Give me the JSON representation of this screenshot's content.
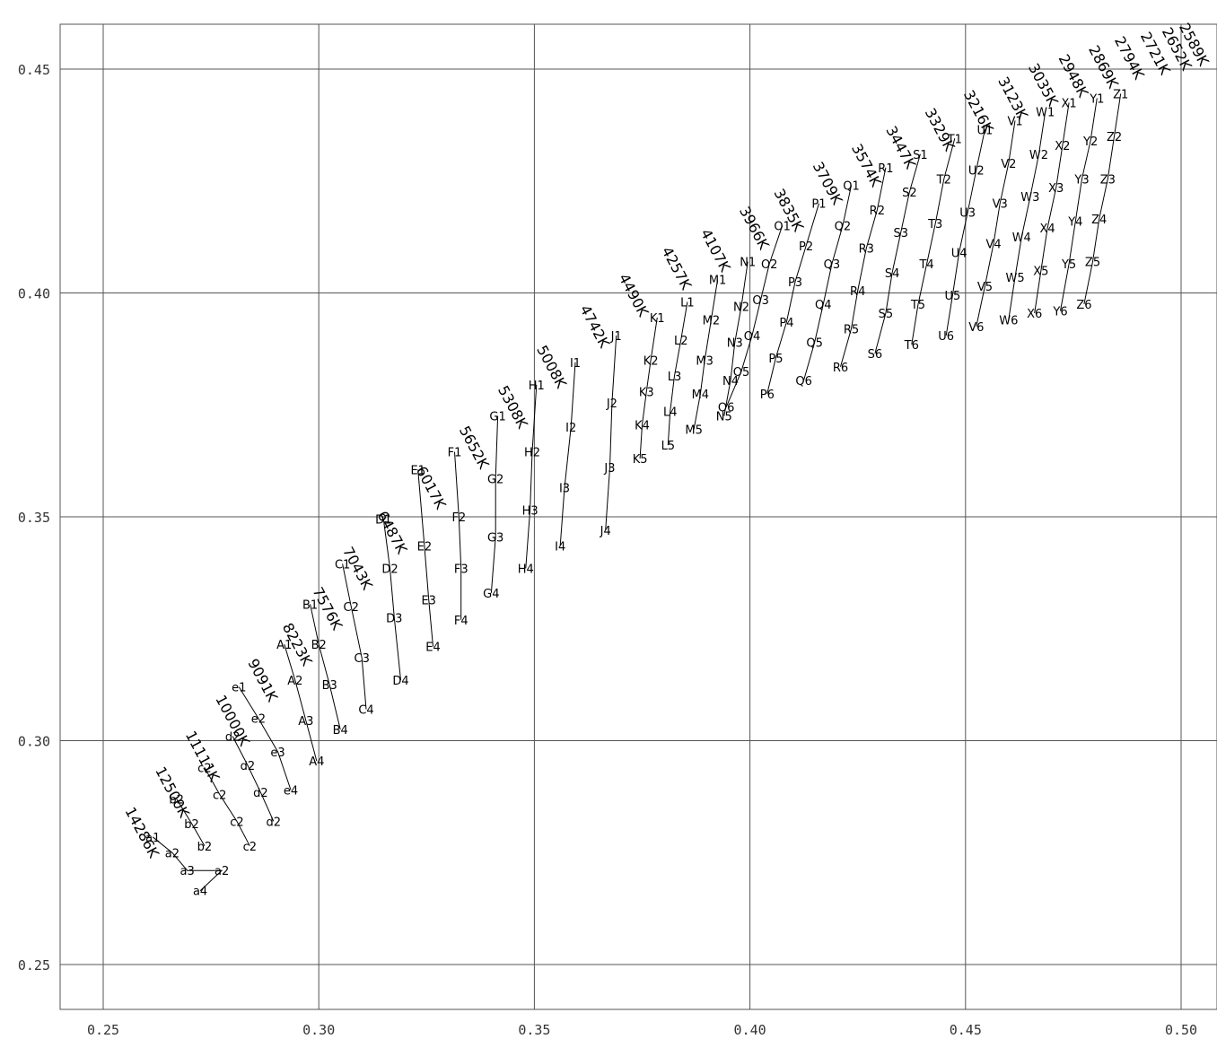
{
  "chart_data": {
    "type": "scatter",
    "title": "",
    "xlabel": "",
    "ylabel": "",
    "xlim": [
      0.24,
      0.505
    ],
    "ylim": [
      0.24,
      0.46
    ],
    "grid": true,
    "x_ticks": [
      0.25,
      0.3,
      0.35,
      0.4,
      0.45,
      0.5
    ],
    "y_ticks": [
      0.25,
      0.3,
      0.35,
      0.4,
      0.45
    ],
    "x_tick_labels": [
      "0.25",
      "0.30",
      "0.35",
      "0.40",
      "0.45",
      "0.50"
    ],
    "y_tick_labels": [
      "0.25",
      "0.30",
      "0.35",
      "0.40",
      "0.45"
    ],
    "cct_isotherms": [
      {
        "label": "14286K",
        "x": 0.258,
        "y": 0.279
      },
      {
        "label": "12500K",
        "x": 0.265,
        "y": 0.288
      },
      {
        "label": "11111K",
        "x": 0.272,
        "y": 0.296
      },
      {
        "label": "10000K",
        "x": 0.279,
        "y": 0.304
      },
      {
        "label": "9091K",
        "x": 0.286,
        "y": 0.313
      },
      {
        "label": "8223K",
        "x": 0.294,
        "y": 0.321
      },
      {
        "label": "7576K",
        "x": 0.301,
        "y": 0.329
      },
      {
        "label": "7043K",
        "x": 0.308,
        "y": 0.338
      },
      {
        "label": "6487K",
        "x": 0.316,
        "y": 0.346
      },
      {
        "label": "6017K",
        "x": 0.325,
        "y": 0.356
      },
      {
        "label": "5652K",
        "x": 0.335,
        "y": 0.365
      },
      {
        "label": "5308K",
        "x": 0.344,
        "y": 0.374
      },
      {
        "label": "5008K",
        "x": 0.353,
        "y": 0.383
      },
      {
        "label": "4742K",
        "x": 0.363,
        "y": 0.392
      },
      {
        "label": "4490K",
        "x": 0.372,
        "y": 0.399
      },
      {
        "label": "4257K",
        "x": 0.382,
        "y": 0.405
      },
      {
        "label": "4107K",
        "x": 0.391,
        "y": 0.409
      },
      {
        "label": "3966K",
        "x": 0.4,
        "y": 0.414
      },
      {
        "label": "3835K",
        "x": 0.408,
        "y": 0.418
      },
      {
        "label": "3709K",
        "x": 0.417,
        "y": 0.424
      },
      {
        "label": "3574K",
        "x": 0.426,
        "y": 0.428
      },
      {
        "label": "3447K",
        "x": 0.434,
        "y": 0.432
      },
      {
        "label": "3329K",
        "x": 0.443,
        "y": 0.436
      },
      {
        "label": "3216K",
        "x": 0.452,
        "y": 0.44
      },
      {
        "label": "3123K",
        "x": 0.46,
        "y": 0.443
      },
      {
        "label": "3035K",
        "x": 0.467,
        "y": 0.446
      },
      {
        "label": "2948K",
        "x": 0.474,
        "y": 0.448
      },
      {
        "label": "2869K",
        "x": 0.481,
        "y": 0.45
      },
      {
        "label": "2794K",
        "x": 0.487,
        "y": 0.452
      },
      {
        "label": "2721K",
        "x": 0.493,
        "y": 0.453
      },
      {
        "label": "2652K",
        "x": 0.498,
        "y": 0.454
      },
      {
        "label": "2589K",
        "x": 0.502,
        "y": 0.455
      }
    ],
    "bin_labels": [
      {
        "label": "a1",
        "x": 0.2615,
        "y": 0.2785
      },
      {
        "label": "a2",
        "x": 0.266,
        "y": 0.275
      },
      {
        "label": "a3",
        "x": 0.2695,
        "y": 0.271
      },
      {
        "label": "a4",
        "x": 0.2725,
        "y": 0.2665
      },
      {
        "label": "b2",
        "x": 0.267,
        "y": 0.287
      },
      {
        "label": "b2",
        "x": 0.2705,
        "y": 0.2815
      },
      {
        "label": "b2",
        "x": 0.2735,
        "y": 0.2765
      },
      {
        "label": "a2",
        "x": 0.2775,
        "y": 0.271
      },
      {
        "label": "c2",
        "x": 0.2735,
        "y": 0.294
      },
      {
        "label": "c2",
        "x": 0.277,
        "y": 0.288
      },
      {
        "label": "c2",
        "x": 0.281,
        "y": 0.282
      },
      {
        "label": "c2",
        "x": 0.284,
        "y": 0.2765
      },
      {
        "label": "d2",
        "x": 0.28,
        "y": 0.301
      },
      {
        "label": "d2",
        "x": 0.2835,
        "y": 0.2945
      },
      {
        "label": "d2",
        "x": 0.2865,
        "y": 0.2885
      },
      {
        "label": "d2",
        "x": 0.2895,
        "y": 0.282
      },
      {
        "label": "e1",
        "x": 0.2815,
        "y": 0.312
      },
      {
        "label": "e2",
        "x": 0.286,
        "y": 0.305
      },
      {
        "label": "e3",
        "x": 0.2905,
        "y": 0.2975
      },
      {
        "label": "e4",
        "x": 0.2935,
        "y": 0.289
      },
      {
        "label": "A1",
        "x": 0.292,
        "y": 0.3215
      },
      {
        "label": "A2",
        "x": 0.2945,
        "y": 0.3135
      },
      {
        "label": "A3",
        "x": 0.297,
        "y": 0.3045
      },
      {
        "label": "A4",
        "x": 0.2995,
        "y": 0.2955
      },
      {
        "label": "B1",
        "x": 0.298,
        "y": 0.3305
      },
      {
        "label": "B2",
        "x": 0.3,
        "y": 0.3215
      },
      {
        "label": "B3",
        "x": 0.3025,
        "y": 0.3125
      },
      {
        "label": "B4",
        "x": 0.305,
        "y": 0.3025
      },
      {
        "label": "C1",
        "x": 0.3055,
        "y": 0.3395
      },
      {
        "label": "C2",
        "x": 0.3075,
        "y": 0.33
      },
      {
        "label": "C3",
        "x": 0.31,
        "y": 0.3185
      },
      {
        "label": "C4",
        "x": 0.311,
        "y": 0.307
      },
      {
        "label": "D1",
        "x": 0.315,
        "y": 0.3495
      },
      {
        "label": "D2",
        "x": 0.3165,
        "y": 0.3385
      },
      {
        "label": "D3",
        "x": 0.3175,
        "y": 0.3275
      },
      {
        "label": "D4",
        "x": 0.319,
        "y": 0.3135
      },
      {
        "label": "E1",
        "x": 0.323,
        "y": 0.3605
      },
      {
        "label": "E2",
        "x": 0.3245,
        "y": 0.3435
      },
      {
        "label": "E3",
        "x": 0.3255,
        "y": 0.3315
      },
      {
        "label": "E4",
        "x": 0.3265,
        "y": 0.321
      },
      {
        "label": "F1",
        "x": 0.3315,
        "y": 0.3645
      },
      {
        "label": "F2",
        "x": 0.3325,
        "y": 0.35
      },
      {
        "label": "F3",
        "x": 0.333,
        "y": 0.3385
      },
      {
        "label": "F4",
        "x": 0.333,
        "y": 0.327
      },
      {
        "label": "G1",
        "x": 0.3415,
        "y": 0.3725
      },
      {
        "label": "G2",
        "x": 0.341,
        "y": 0.3585
      },
      {
        "label": "G3",
        "x": 0.341,
        "y": 0.3455
      },
      {
        "label": "G4",
        "x": 0.34,
        "y": 0.333
      },
      {
        "label": "H1",
        "x": 0.3505,
        "y": 0.3795
      },
      {
        "label": "H2",
        "x": 0.3495,
        "y": 0.3645
      },
      {
        "label": "H3",
        "x": 0.349,
        "y": 0.3515
      },
      {
        "label": "H4",
        "x": 0.348,
        "y": 0.3385
      },
      {
        "label": "I1",
        "x": 0.3595,
        "y": 0.3845
      },
      {
        "label": "I2",
        "x": 0.3585,
        "y": 0.37
      },
      {
        "label": "I3",
        "x": 0.357,
        "y": 0.3565
      },
      {
        "label": "I4",
        "x": 0.356,
        "y": 0.3435
      },
      {
        "label": "J1",
        "x": 0.369,
        "y": 0.3905
      },
      {
        "label": "J2",
        "x": 0.368,
        "y": 0.3755
      },
      {
        "label": "J3",
        "x": 0.3675,
        "y": 0.361
      },
      {
        "label": "J4",
        "x": 0.3665,
        "y": 0.347
      },
      {
        "label": "K1",
        "x": 0.3785,
        "y": 0.3945
      },
      {
        "label": "K2",
        "x": 0.377,
        "y": 0.385
      },
      {
        "label": "K3",
        "x": 0.376,
        "y": 0.378
      },
      {
        "label": "K4",
        "x": 0.375,
        "y": 0.3705
      },
      {
        "label": "K5",
        "x": 0.3745,
        "y": 0.363
      },
      {
        "label": "L1",
        "x": 0.3855,
        "y": 0.398
      },
      {
        "label": "L2",
        "x": 0.384,
        "y": 0.3895
      },
      {
        "label": "L3",
        "x": 0.3825,
        "y": 0.3815
      },
      {
        "label": "L4",
        "x": 0.3815,
        "y": 0.3735
      },
      {
        "label": "L5",
        "x": 0.381,
        "y": 0.366
      },
      {
        "label": "M1",
        "x": 0.3925,
        "y": 0.403
      },
      {
        "label": "M2",
        "x": 0.391,
        "y": 0.394
      },
      {
        "label": "M3",
        "x": 0.3895,
        "y": 0.385
      },
      {
        "label": "M4",
        "x": 0.3885,
        "y": 0.3775
      },
      {
        "label": "M5",
        "x": 0.387,
        "y": 0.3695
      },
      {
        "label": "N1",
        "x": 0.3995,
        "y": 0.407
      },
      {
        "label": "N2",
        "x": 0.398,
        "y": 0.397
      },
      {
        "label": "N3",
        "x": 0.3965,
        "y": 0.389
      },
      {
        "label": "N4",
        "x": 0.3955,
        "y": 0.3805
      },
      {
        "label": "N5",
        "x": 0.394,
        "y": 0.3725
      },
      {
        "label": "O1",
        "x": 0.4075,
        "y": 0.415
      },
      {
        "label": "O2",
        "x": 0.4045,
        "y": 0.4065
      },
      {
        "label": "O3",
        "x": 0.4025,
        "y": 0.3985
      },
      {
        "label": "O4",
        "x": 0.4005,
        "y": 0.3905
      },
      {
        "label": "O5",
        "x": 0.398,
        "y": 0.3825
      },
      {
        "label": "O6",
        "x": 0.3945,
        "y": 0.3745
      },
      {
        "label": "P1",
        "x": 0.416,
        "y": 0.42
      },
      {
        "label": "P2",
        "x": 0.413,
        "y": 0.4105
      },
      {
        "label": "P3",
        "x": 0.4105,
        "y": 0.4025
      },
      {
        "label": "P4",
        "x": 0.4085,
        "y": 0.3935
      },
      {
        "label": "P5",
        "x": 0.406,
        "y": 0.3855
      },
      {
        "label": "P6",
        "x": 0.404,
        "y": 0.3775
      },
      {
        "label": "Q1",
        "x": 0.4235,
        "y": 0.424
      },
      {
        "label": "Q2",
        "x": 0.4215,
        "y": 0.415
      },
      {
        "label": "Q3",
        "x": 0.419,
        "y": 0.4065
      },
      {
        "label": "Q4",
        "x": 0.417,
        "y": 0.3975
      },
      {
        "label": "Q5",
        "x": 0.415,
        "y": 0.389
      },
      {
        "label": "Q6",
        "x": 0.4125,
        "y": 0.3805
      },
      {
        "label": "R1",
        "x": 0.4315,
        "y": 0.428
      },
      {
        "label": "R2",
        "x": 0.4295,
        "y": 0.4185
      },
      {
        "label": "R3",
        "x": 0.427,
        "y": 0.41
      },
      {
        "label": "R4",
        "x": 0.425,
        "y": 0.4005
      },
      {
        "label": "R5",
        "x": 0.4235,
        "y": 0.392
      },
      {
        "label": "R6",
        "x": 0.421,
        "y": 0.3835
      },
      {
        "label": "S1",
        "x": 0.4395,
        "y": 0.431
      },
      {
        "label": "S2",
        "x": 0.437,
        "y": 0.4225
      },
      {
        "label": "S3",
        "x": 0.435,
        "y": 0.4135
      },
      {
        "label": "S4",
        "x": 0.433,
        "y": 0.4045
      },
      {
        "label": "S5",
        "x": 0.4315,
        "y": 0.3955
      },
      {
        "label": "S6",
        "x": 0.429,
        "y": 0.3865
      },
      {
        "label": "T1",
        "x": 0.4475,
        "y": 0.4345
      },
      {
        "label": "T2",
        "x": 0.445,
        "y": 0.4255
      },
      {
        "label": "T3",
        "x": 0.443,
        "y": 0.4155
      },
      {
        "label": "T4",
        "x": 0.441,
        "y": 0.4065
      },
      {
        "label": "T5",
        "x": 0.439,
        "y": 0.3975
      },
      {
        "label": "T6",
        "x": 0.4375,
        "y": 0.3885
      },
      {
        "label": "U1",
        "x": 0.4545,
        "y": 0.4365
      },
      {
        "label": "U2",
        "x": 0.4525,
        "y": 0.4275
      },
      {
        "label": "U3",
        "x": 0.4505,
        "y": 0.418
      },
      {
        "label": "U4",
        "x": 0.4485,
        "y": 0.409
      },
      {
        "label": "U5",
        "x": 0.447,
        "y": 0.3995
      },
      {
        "label": "U6",
        "x": 0.4455,
        "y": 0.3905
      },
      {
        "label": "V1",
        "x": 0.4615,
        "y": 0.4385
      },
      {
        "label": "V2",
        "x": 0.46,
        "y": 0.429
      },
      {
        "label": "V3",
        "x": 0.458,
        "y": 0.42
      },
      {
        "label": "V4",
        "x": 0.4565,
        "y": 0.411
      },
      {
        "label": "V5",
        "x": 0.4545,
        "y": 0.4015
      },
      {
        "label": "V6",
        "x": 0.4525,
        "y": 0.3925
      },
      {
        "label": "W1",
        "x": 0.4685,
        "y": 0.4405
      },
      {
        "label": "W2",
        "x": 0.467,
        "y": 0.431
      },
      {
        "label": "W3",
        "x": 0.465,
        "y": 0.4215
      },
      {
        "label": "W4",
        "x": 0.463,
        "y": 0.4125
      },
      {
        "label": "W5",
        "x": 0.4615,
        "y": 0.4035
      },
      {
        "label": "W6",
        "x": 0.46,
        "y": 0.394
      },
      {
        "label": "X1",
        "x": 0.474,
        "y": 0.4425
      },
      {
        "label": "X2",
        "x": 0.4725,
        "y": 0.433
      },
      {
        "label": "X3",
        "x": 0.471,
        "y": 0.4235
      },
      {
        "label": "X4",
        "x": 0.469,
        "y": 0.4145
      },
      {
        "label": "X5",
        "x": 0.4675,
        "y": 0.405
      },
      {
        "label": "X6",
        "x": 0.466,
        "y": 0.3955
      },
      {
        "label": "Y1",
        "x": 0.4805,
        "y": 0.4435
      },
      {
        "label": "Y2",
        "x": 0.479,
        "y": 0.434
      },
      {
        "label": "Y3",
        "x": 0.477,
        "y": 0.4255
      },
      {
        "label": "Y4",
        "x": 0.4755,
        "y": 0.416
      },
      {
        "label": "Y5",
        "x": 0.474,
        "y": 0.4065
      },
      {
        "label": "Y6",
        "x": 0.472,
        "y": 0.396
      },
      {
        "label": "Z1",
        "x": 0.486,
        "y": 0.4445
      },
      {
        "label": "Z2",
        "x": 0.4845,
        "y": 0.435
      },
      {
        "label": "Z3",
        "x": 0.483,
        "y": 0.4255
      },
      {
        "label": "Z4",
        "x": 0.481,
        "y": 0.4165
      },
      {
        "label": "Z5",
        "x": 0.4795,
        "y": 0.407
      },
      {
        "label": "Z6",
        "x": 0.4775,
        "y": 0.3975
      }
    ]
  }
}
